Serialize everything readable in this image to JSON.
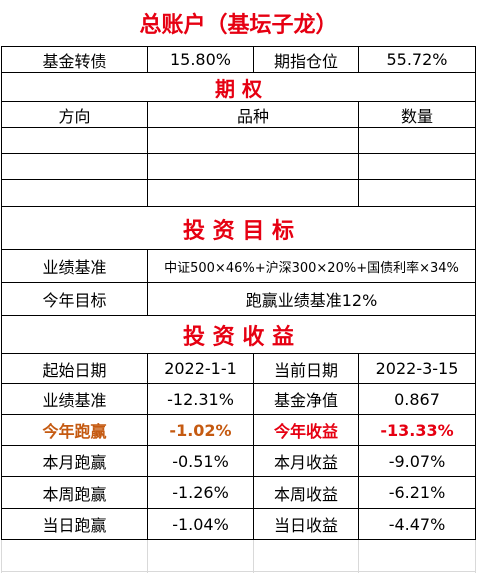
{
  "title": "总账户（基坛子龙）",
  "top_row": {
    "label1": "基金转债",
    "value1": "15.80%",
    "label2": "期指仓位",
    "value2": "55.72%"
  },
  "options": {
    "title": "期  权",
    "headers": [
      "方向",
      "品种",
      "数量"
    ]
  },
  "goals": {
    "title": "投 资 目 标",
    "benchmark_label": "业绩基准",
    "benchmark_value": "中证500×46%+沪深300×20%+国债利率×34%",
    "year_goal_label": "今年目标",
    "year_goal_value": "跑赢业绩基准12%"
  },
  "returns": {
    "title": "投 资 收 益",
    "rows": [
      {
        "l1": "起始日期",
        "v1": "2022-1-1",
        "l2": "当前日期",
        "v2": "2022-3-15"
      },
      {
        "l1": "业绩基准",
        "v1": "-12.31%",
        "l2": "基金净值",
        "v2": "0.867"
      },
      {
        "l1": "今年跑赢",
        "v1": "-1.02%",
        "l2": "今年收益",
        "v2": "-13.33%"
      },
      {
        "l1": "本月跑赢",
        "v1": "-0.51%",
        "l2": "本月收益",
        "v2": "-9.07%"
      },
      {
        "l1": "本周跑赢",
        "v1": "-1.26%",
        "l2": "本周收益",
        "v2": "-6.21%"
      },
      {
        "l1": "当日跑赢",
        "v1": "-1.04%",
        "l2": "当日收益",
        "v2": "-4.47%"
      }
    ]
  },
  "colors": {
    "title_red": "#e60012",
    "highlight_orange": "#c55a11"
  }
}
